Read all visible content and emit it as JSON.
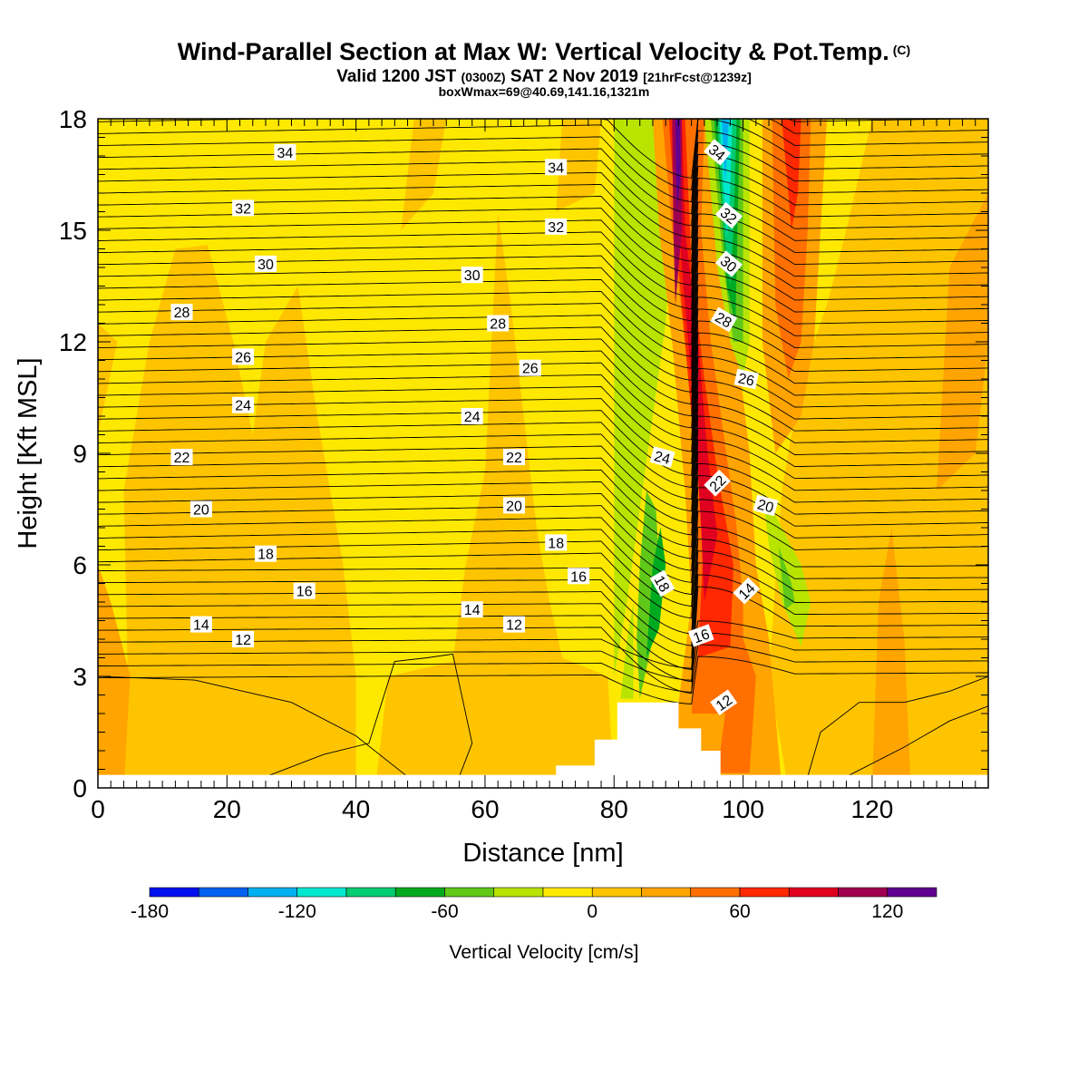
{
  "header": {
    "title": "Wind-Parallel Section at Max W: Vertical Velocity & Pot.Temp.",
    "copyright": "(C)",
    "valid_a": "Valid 1200 JST",
    "valid_b": "(0300Z)",
    "valid_c": "SAT 2 Nov 2019",
    "valid_d": "[21hrFcst@1239z]",
    "box": "boxWmax=69@40.69,141.16,1321m"
  },
  "chart_data": {
    "type": "heatmap",
    "title": "Wind-Parallel Section at Max W: Vertical Velocity & Pot.Temp.",
    "xlabel": "Distance [nm]",
    "ylabel": "Height [Kft MSL]",
    "xlim": [
      0,
      138
    ],
    "ylim": [
      0,
      18
    ],
    "x_ticks": [
      "0",
      "20",
      "40",
      "60",
      "80",
      "100",
      "120"
    ],
    "y_ticks": [
      "0",
      "3",
      "6",
      "9",
      "12",
      "15",
      "18"
    ],
    "colorbar": {
      "title": "Vertical Velocity [cm/s]",
      "min": -180,
      "max": 140,
      "step": 20,
      "tick_labels": [
        "-180",
        "-120",
        "-60",
        "0",
        "60",
        "120"
      ],
      "tick_values": [
        -180,
        -120,
        -60,
        0,
        60,
        120
      ],
      "colors": [
        "#0010f0",
        "#0060f0",
        "#00b0f0",
        "#00e8d0",
        "#00cc70",
        "#00aa20",
        "#60c818",
        "#b8e400",
        "#ffe800",
        "#ffc400",
        "#ffa400",
        "#ff7000",
        "#ff2800",
        "#e00020",
        "#a00050",
        "#600090"
      ]
    },
    "theta_contour_labels": [
      {
        "x": 29,
        "y": 17.1,
        "text": "34",
        "angle": 0
      },
      {
        "x": 71,
        "y": 16.7,
        "text": "34",
        "angle": 0
      },
      {
        "x": 96,
        "y": 17.1,
        "text": "34",
        "angle": 40
      },
      {
        "x": 22.5,
        "y": 15.6,
        "text": "32",
        "angle": 0
      },
      {
        "x": 71,
        "y": 15.1,
        "text": "32",
        "angle": 0
      },
      {
        "x": 97.8,
        "y": 15.4,
        "text": "32",
        "angle": 40
      },
      {
        "x": 26,
        "y": 14.1,
        "text": "30",
        "angle": 0
      },
      {
        "x": 58,
        "y": 13.8,
        "text": "30",
        "angle": 0
      },
      {
        "x": 97.8,
        "y": 14.1,
        "text": "30",
        "angle": 40
      },
      {
        "x": 13,
        "y": 12.8,
        "text": "28",
        "angle": 0
      },
      {
        "x": 62,
        "y": 12.5,
        "text": "28",
        "angle": 0
      },
      {
        "x": 97,
        "y": 12.6,
        "text": "28",
        "angle": 30
      },
      {
        "x": 22.5,
        "y": 11.6,
        "text": "26",
        "angle": 0
      },
      {
        "x": 67,
        "y": 11.3,
        "text": "26",
        "angle": 0
      },
      {
        "x": 100.5,
        "y": 11.0,
        "text": "26",
        "angle": 12
      },
      {
        "x": 22.5,
        "y": 10.3,
        "text": "24",
        "angle": 0
      },
      {
        "x": 58,
        "y": 10.0,
        "text": "24",
        "angle": 0
      },
      {
        "x": 87.5,
        "y": 8.9,
        "text": "24",
        "angle": 15
      },
      {
        "x": 13,
        "y": 8.9,
        "text": "22",
        "angle": 0
      },
      {
        "x": 64.5,
        "y": 8.9,
        "text": "22",
        "angle": 0
      },
      {
        "x": 96,
        "y": 8.2,
        "text": "22",
        "angle": -45
      },
      {
        "x": 16,
        "y": 7.5,
        "text": "20",
        "angle": 0
      },
      {
        "x": 64.5,
        "y": 7.6,
        "text": "20",
        "angle": 0
      },
      {
        "x": 103.5,
        "y": 7.6,
        "text": "20",
        "angle": 15
      },
      {
        "x": 26,
        "y": 6.3,
        "text": "18",
        "angle": 0
      },
      {
        "x": 71,
        "y": 6.6,
        "text": "18",
        "angle": 0
      },
      {
        "x": 87.5,
        "y": 5.5,
        "text": "18",
        "angle": 60
      },
      {
        "x": 32,
        "y": 5.3,
        "text": "16",
        "angle": 0
      },
      {
        "x": 74.5,
        "y": 5.7,
        "text": "16",
        "angle": 0
      },
      {
        "x": 93.5,
        "y": 4.1,
        "text": "16",
        "angle": -20
      },
      {
        "x": 16,
        "y": 4.4,
        "text": "14",
        "angle": 0
      },
      {
        "x": 58,
        "y": 4.8,
        "text": "14",
        "angle": 0
      },
      {
        "x": 100.5,
        "y": 5.3,
        "text": "14",
        "angle": -45
      },
      {
        "x": 22.5,
        "y": 4.0,
        "text": "12",
        "angle": 0
      },
      {
        "x": 64.5,
        "y": 4.4,
        "text": "12",
        "angle": 0
      },
      {
        "x": 97,
        "y": 2.3,
        "text": "12",
        "angle": -35
      }
    ],
    "terrain": [
      [
        71,
        0.6
      ],
      [
        77,
        0.6
      ],
      [
        77,
        1.3
      ],
      [
        80.5,
        1.3
      ],
      [
        80.5,
        2.3
      ],
      [
        90,
        2.3
      ],
      [
        90,
        1.6
      ],
      [
        93.5,
        1.6
      ],
      [
        93.5,
        1.0
      ],
      [
        96.5,
        1.0
      ],
      [
        96.5,
        0.35
      ]
    ]
  }
}
